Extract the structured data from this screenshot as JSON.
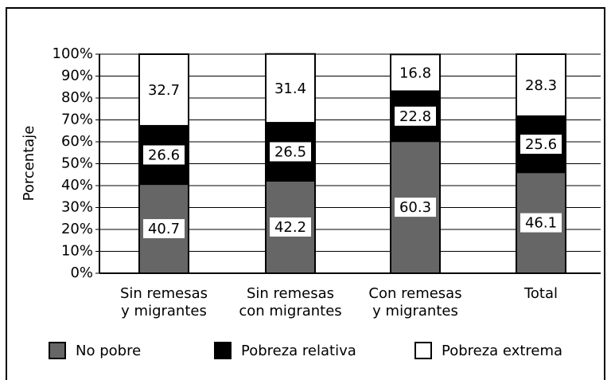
{
  "chart_data": {
    "type": "stacked_bar",
    "ylabel": "Porcentaje",
    "categories": [
      [
        "Sin remesas",
        "y migrantes"
      ],
      [
        "Sin remesas",
        "con migrantes"
      ],
      [
        "Con remesas",
        "y migrantes"
      ],
      [
        "Total"
      ]
    ],
    "series": [
      {
        "name": "No pobre",
        "color": "#666666",
        "values": [
          40.7,
          42.2,
          60.3,
          46.1
        ]
      },
      {
        "name": "Pobreza relativa",
        "color": "#000000",
        "values": [
          26.6,
          26.5,
          22.8,
          25.6
        ]
      },
      {
        "name": "Pobreza extrema",
        "color": "#ffffff",
        "values": [
          32.7,
          31.4,
          16.8,
          28.3
        ]
      }
    ],
    "ylim": [
      0,
      100
    ],
    "yticks": [
      {
        "value": 0,
        "label": "0%"
      },
      {
        "value": 10,
        "label": "10%"
      },
      {
        "value": 20,
        "label": "20%"
      },
      {
        "value": 30,
        "label": "30%"
      },
      {
        "value": 40,
        "label": "40%"
      },
      {
        "value": 50,
        "label": "50%"
      },
      {
        "value": 60,
        "label": "60%"
      },
      {
        "value": 70,
        "label": "70%"
      },
      {
        "value": 80,
        "label": "80%"
      },
      {
        "value": 90,
        "label": "90%"
      },
      {
        "value": 100,
        "label": "100%"
      }
    ],
    "grid": true,
    "legend": "bottom"
  }
}
